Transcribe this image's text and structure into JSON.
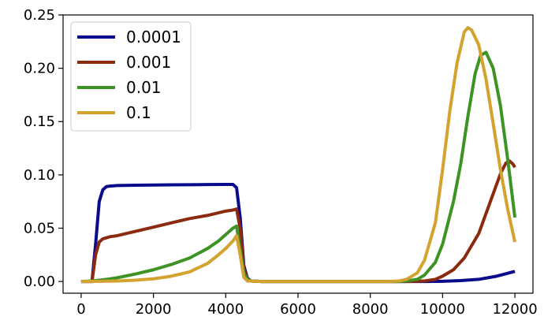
{
  "chart_data": {
    "type": "line",
    "title": "",
    "xlabel": "",
    "ylabel": "",
    "xlim": [
      -500,
      12500
    ],
    "ylim": [
      -0.011,
      0.25
    ],
    "grid": false,
    "legend_position": "top-left",
    "x_ticks": [
      {
        "value": 0,
        "label": "0"
      },
      {
        "value": 2000,
        "label": "2000"
      },
      {
        "value": 4000,
        "label": "4000"
      },
      {
        "value": 6000,
        "label": "6000"
      },
      {
        "value": 8000,
        "label": "8000"
      },
      {
        "value": 10000,
        "label": "10000"
      },
      {
        "value": 12000,
        "label": "12000"
      }
    ],
    "y_ticks": [
      {
        "value": 0.0,
        "label": "0.00"
      },
      {
        "value": 0.05,
        "label": "0.05"
      },
      {
        "value": 0.1,
        "label": "0.10"
      },
      {
        "value": 0.15,
        "label": "0.15"
      },
      {
        "value": 0.2,
        "label": "0.20"
      },
      {
        "value": 0.25,
        "label": "0.25"
      }
    ],
    "series": [
      {
        "name": "0.0001",
        "color": "#0a0a8c",
        "x": [
          0,
          300,
          400,
          500,
          600,
          700,
          800,
          1000,
          1500,
          2000,
          2500,
          3000,
          3500,
          4000,
          4200,
          4300,
          4400,
          4500,
          4600,
          4700,
          5000,
          6000,
          7000,
          8000,
          9000,
          9500,
          10000,
          10500,
          11000,
          11500,
          12000
        ],
        "y": [
          0.0,
          0.0,
          0.035,
          0.075,
          0.086,
          0.089,
          0.0895,
          0.09,
          0.0903,
          0.0905,
          0.0907,
          0.0908,
          0.0909,
          0.091,
          0.091,
          0.088,
          0.06,
          0.015,
          0.003,
          0.0005,
          0.0,
          0.0,
          0.0,
          0.0,
          0.0,
          0.0,
          0.0002,
          0.0008,
          0.002,
          0.005,
          0.0095
        ]
      },
      {
        "name": "0.001",
        "color": "#8b2a0f",
        "x": [
          0,
          300,
          400,
          500,
          600,
          700,
          800,
          1000,
          1500,
          2000,
          2500,
          3000,
          3500,
          4000,
          4200,
          4300,
          4400,
          4500,
          4600,
          4700,
          5000,
          6000,
          7000,
          8000,
          9000,
          9500,
          9800,
          10000,
          10300,
          10600,
          11000,
          11300,
          11600,
          11750,
          11850,
          11950,
          12000
        ],
        "y": [
          0.0,
          0.0,
          0.025,
          0.037,
          0.04,
          0.041,
          0.042,
          0.043,
          0.047,
          0.051,
          0.055,
          0.059,
          0.062,
          0.066,
          0.067,
          0.068,
          0.05,
          0.012,
          0.002,
          0.0005,
          0.0,
          0.0,
          0.0,
          0.0,
          0.0,
          0.0005,
          0.002,
          0.005,
          0.011,
          0.022,
          0.045,
          0.073,
          0.101,
          0.111,
          0.113,
          0.11,
          0.107
        ]
      },
      {
        "name": "0.01",
        "color": "#3d9424",
        "x": [
          0,
          300,
          500,
          700,
          1000,
          1500,
          2000,
          2500,
          3000,
          3500,
          3800,
          4000,
          4200,
          4300,
          4400,
          4500,
          4600,
          4700,
          5000,
          6000,
          7000,
          8000,
          8800,
          9000,
          9300,
          9500,
          9800,
          10000,
          10300,
          10500,
          10700,
          10900,
          11050,
          11200,
          11400,
          11600,
          11800,
          12000
        ],
        "y": [
          0.0,
          0.0005,
          0.0012,
          0.002,
          0.0035,
          0.007,
          0.011,
          0.016,
          0.022,
          0.031,
          0.038,
          0.044,
          0.05,
          0.052,
          0.03,
          0.008,
          0.002,
          0.0005,
          0.0,
          0.0,
          0.0,
          0.0,
          0.0,
          0.0005,
          0.002,
          0.006,
          0.018,
          0.035,
          0.075,
          0.11,
          0.155,
          0.195,
          0.212,
          0.215,
          0.2,
          0.165,
          0.115,
          0.06
        ]
      },
      {
        "name": "0.1",
        "color": "#d4a22e",
        "x": [
          0,
          500,
          1000,
          1500,
          2000,
          2500,
          3000,
          3500,
          3800,
          4000,
          4200,
          4300,
          4400,
          4500,
          4600,
          5000,
          6000,
          7000,
          8000,
          8500,
          8800,
          9000,
          9300,
          9500,
          9800,
          10000,
          10200,
          10400,
          10600,
          10700,
          10800,
          11000,
          11200,
          11400,
          11600,
          11800,
          12000
        ],
        "y": [
          0.0,
          0.0002,
          0.0005,
          0.0012,
          0.0025,
          0.005,
          0.009,
          0.017,
          0.025,
          0.031,
          0.038,
          0.043,
          0.025,
          0.004,
          0.0005,
          0.0,
          0.0,
          0.0,
          0.0,
          0.0,
          0.0005,
          0.002,
          0.008,
          0.02,
          0.055,
          0.105,
          0.16,
          0.205,
          0.234,
          0.238,
          0.236,
          0.222,
          0.19,
          0.148,
          0.105,
          0.068,
          0.037
        ]
      }
    ]
  }
}
